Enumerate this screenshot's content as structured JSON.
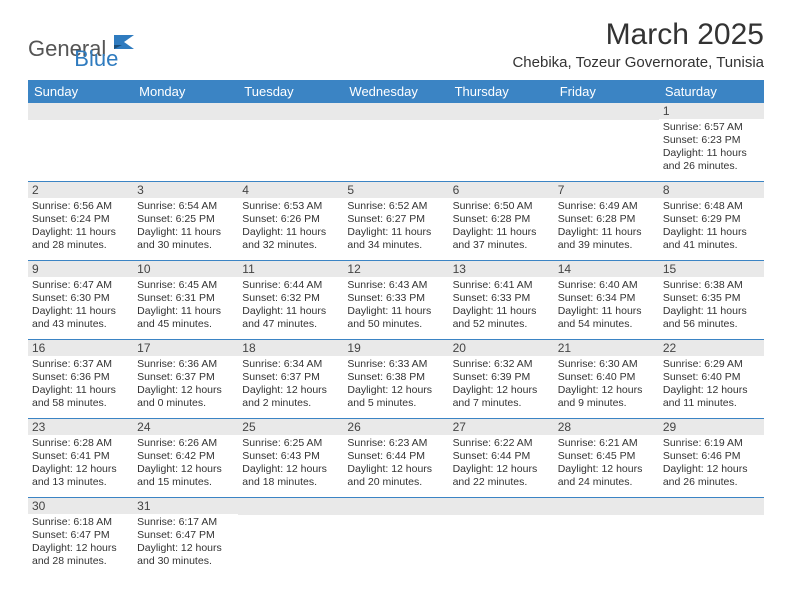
{
  "logo": {
    "word1": "General",
    "word2": "Blue"
  },
  "title": "March 2025",
  "location": "Chebika, Tozeur Governorate, Tunisia",
  "colors": {
    "header_bar": "#3b84c4",
    "header_text": "#ffffff",
    "daynum_bg": "#e9e9e9",
    "row_border": "#3b84c4",
    "logo_dark": "#555555",
    "logo_blue": "#2f7bbf"
  },
  "dayHeaders": [
    "Sunday",
    "Monday",
    "Tuesday",
    "Wednesday",
    "Thursday",
    "Friday",
    "Saturday"
  ],
  "weeks": [
    [
      {
        "n": "",
        "lines": []
      },
      {
        "n": "",
        "lines": []
      },
      {
        "n": "",
        "lines": []
      },
      {
        "n": "",
        "lines": []
      },
      {
        "n": "",
        "lines": []
      },
      {
        "n": "",
        "lines": []
      },
      {
        "n": "1",
        "lines": [
          "Sunrise: 6:57 AM",
          "Sunset: 6:23 PM",
          "Daylight: 11 hours and 26 minutes."
        ]
      }
    ],
    [
      {
        "n": "2",
        "lines": [
          "Sunrise: 6:56 AM",
          "Sunset: 6:24 PM",
          "Daylight: 11 hours and 28 minutes."
        ]
      },
      {
        "n": "3",
        "lines": [
          "Sunrise: 6:54 AM",
          "Sunset: 6:25 PM",
          "Daylight: 11 hours and 30 minutes."
        ]
      },
      {
        "n": "4",
        "lines": [
          "Sunrise: 6:53 AM",
          "Sunset: 6:26 PM",
          "Daylight: 11 hours and 32 minutes."
        ]
      },
      {
        "n": "5",
        "lines": [
          "Sunrise: 6:52 AM",
          "Sunset: 6:27 PM",
          "Daylight: 11 hours and 34 minutes."
        ]
      },
      {
        "n": "6",
        "lines": [
          "Sunrise: 6:50 AM",
          "Sunset: 6:28 PM",
          "Daylight: 11 hours and 37 minutes."
        ]
      },
      {
        "n": "7",
        "lines": [
          "Sunrise: 6:49 AM",
          "Sunset: 6:28 PM",
          "Daylight: 11 hours and 39 minutes."
        ]
      },
      {
        "n": "8",
        "lines": [
          "Sunrise: 6:48 AM",
          "Sunset: 6:29 PM",
          "Daylight: 11 hours and 41 minutes."
        ]
      }
    ],
    [
      {
        "n": "9",
        "lines": [
          "Sunrise: 6:47 AM",
          "Sunset: 6:30 PM",
          "Daylight: 11 hours and 43 minutes."
        ]
      },
      {
        "n": "10",
        "lines": [
          "Sunrise: 6:45 AM",
          "Sunset: 6:31 PM",
          "Daylight: 11 hours and 45 minutes."
        ]
      },
      {
        "n": "11",
        "lines": [
          "Sunrise: 6:44 AM",
          "Sunset: 6:32 PM",
          "Daylight: 11 hours and 47 minutes."
        ]
      },
      {
        "n": "12",
        "lines": [
          "Sunrise: 6:43 AM",
          "Sunset: 6:33 PM",
          "Daylight: 11 hours and 50 minutes."
        ]
      },
      {
        "n": "13",
        "lines": [
          "Sunrise: 6:41 AM",
          "Sunset: 6:33 PM",
          "Daylight: 11 hours and 52 minutes."
        ]
      },
      {
        "n": "14",
        "lines": [
          "Sunrise: 6:40 AM",
          "Sunset: 6:34 PM",
          "Daylight: 11 hours and 54 minutes."
        ]
      },
      {
        "n": "15",
        "lines": [
          "Sunrise: 6:38 AM",
          "Sunset: 6:35 PM",
          "Daylight: 11 hours and 56 minutes."
        ]
      }
    ],
    [
      {
        "n": "16",
        "lines": [
          "Sunrise: 6:37 AM",
          "Sunset: 6:36 PM",
          "Daylight: 11 hours and 58 minutes."
        ]
      },
      {
        "n": "17",
        "lines": [
          "Sunrise: 6:36 AM",
          "Sunset: 6:37 PM",
          "Daylight: 12 hours and 0 minutes."
        ]
      },
      {
        "n": "18",
        "lines": [
          "Sunrise: 6:34 AM",
          "Sunset: 6:37 PM",
          "Daylight: 12 hours and 2 minutes."
        ]
      },
      {
        "n": "19",
        "lines": [
          "Sunrise: 6:33 AM",
          "Sunset: 6:38 PM",
          "Daylight: 12 hours and 5 minutes."
        ]
      },
      {
        "n": "20",
        "lines": [
          "Sunrise: 6:32 AM",
          "Sunset: 6:39 PM",
          "Daylight: 12 hours and 7 minutes."
        ]
      },
      {
        "n": "21",
        "lines": [
          "Sunrise: 6:30 AM",
          "Sunset: 6:40 PM",
          "Daylight: 12 hours and 9 minutes."
        ]
      },
      {
        "n": "22",
        "lines": [
          "Sunrise: 6:29 AM",
          "Sunset: 6:40 PM",
          "Daylight: 12 hours and 11 minutes."
        ]
      }
    ],
    [
      {
        "n": "23",
        "lines": [
          "Sunrise: 6:28 AM",
          "Sunset: 6:41 PM",
          "Daylight: 12 hours and 13 minutes."
        ]
      },
      {
        "n": "24",
        "lines": [
          "Sunrise: 6:26 AM",
          "Sunset: 6:42 PM",
          "Daylight: 12 hours and 15 minutes."
        ]
      },
      {
        "n": "25",
        "lines": [
          "Sunrise: 6:25 AM",
          "Sunset: 6:43 PM",
          "Daylight: 12 hours and 18 minutes."
        ]
      },
      {
        "n": "26",
        "lines": [
          "Sunrise: 6:23 AM",
          "Sunset: 6:44 PM",
          "Daylight: 12 hours and 20 minutes."
        ]
      },
      {
        "n": "27",
        "lines": [
          "Sunrise: 6:22 AM",
          "Sunset: 6:44 PM",
          "Daylight: 12 hours and 22 minutes."
        ]
      },
      {
        "n": "28",
        "lines": [
          "Sunrise: 6:21 AM",
          "Sunset: 6:45 PM",
          "Daylight: 12 hours and 24 minutes."
        ]
      },
      {
        "n": "29",
        "lines": [
          "Sunrise: 6:19 AM",
          "Sunset: 6:46 PM",
          "Daylight: 12 hours and 26 minutes."
        ]
      }
    ],
    [
      {
        "n": "30",
        "lines": [
          "Sunrise: 6:18 AM",
          "Sunset: 6:47 PM",
          "Daylight: 12 hours and 28 minutes."
        ]
      },
      {
        "n": "31",
        "lines": [
          "Sunrise: 6:17 AM",
          "Sunset: 6:47 PM",
          "Daylight: 12 hours and 30 minutes."
        ]
      },
      {
        "n": "",
        "lines": []
      },
      {
        "n": "",
        "lines": []
      },
      {
        "n": "",
        "lines": []
      },
      {
        "n": "",
        "lines": []
      },
      {
        "n": "",
        "lines": []
      }
    ]
  ]
}
